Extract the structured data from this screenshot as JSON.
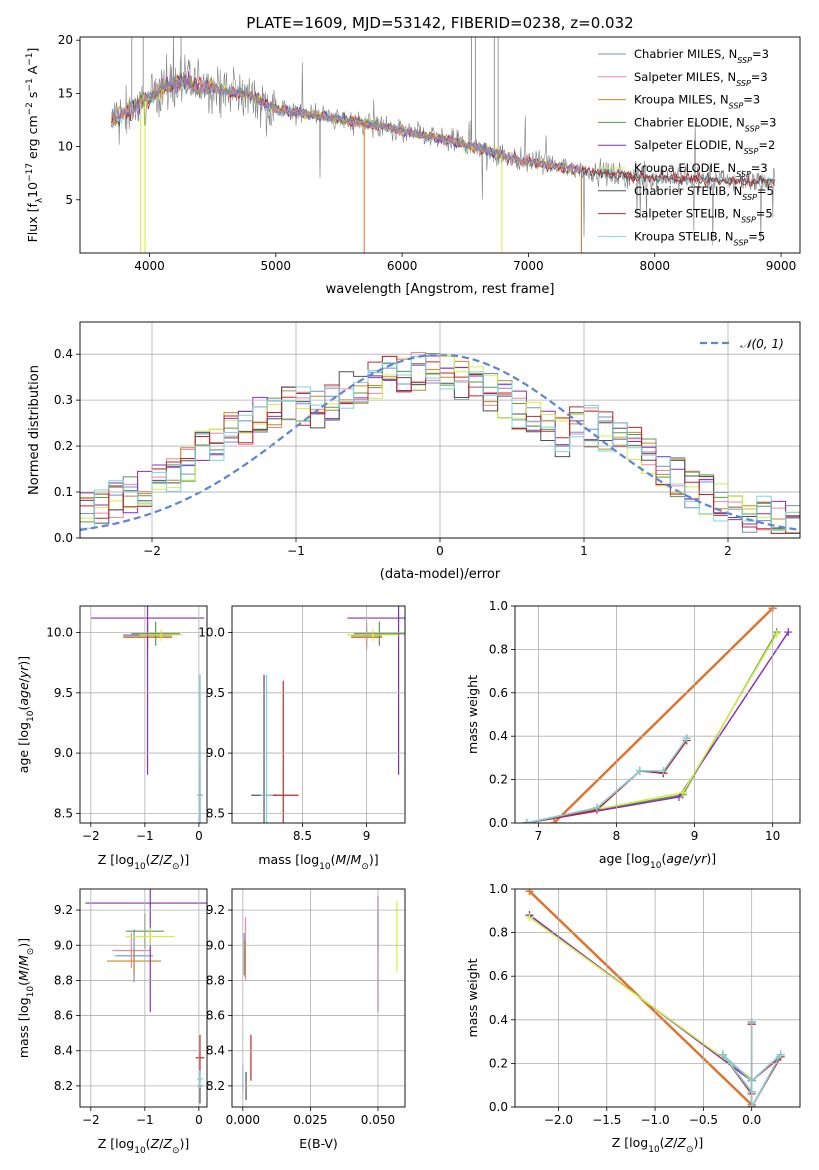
{
  "figure_title": "PLATE=1609, MJD=53142, FIBERID=0238, z=0.032",
  "colors": {
    "Chabrier MILES": "#6b8fd6",
    "Salpeter MILES": "#e98aa0",
    "Kroupa MILES": "#c58a2a",
    "Chabrier ELODIE": "#5a9a4a",
    "Salpeter ELODIE": "#8a2fb8",
    "Kroupa ELODIE": "#d4f040",
    "Chabrier STELIB": "#505050",
    "Salpeter STELIB": "#c02828",
    "Kroupa STELIB": "#7fd4e2",
    "data": "#808080",
    "orange": "#e0742c",
    "gauss": "#5b86d6"
  },
  "chart_data": [
    {
      "id": "spectrum",
      "type": "line",
      "title": "PLATE=1609, MJD=53142, FIBERID=0238, z=0.032",
      "xlabel": "wavelength [Angstrom, rest frame]",
      "ylabel": "Flux [f_λ 10^-17 erg cm^-2 s^-1 A^-1]",
      "xlim": [
        3450,
        9150
      ],
      "ylim": [
        0,
        20.3
      ],
      "xticks": [
        4000,
        5000,
        6000,
        7000,
        8000,
        9000
      ],
      "yticks": [
        5,
        10,
        15,
        20
      ],
      "legend_position": "right",
      "legend": [
        {
          "name": "Chabrier MILES",
          "nssp": "3"
        },
        {
          "name": "Salpeter MILES",
          "nssp": "3"
        },
        {
          "name": "Kroupa MILES",
          "nssp": "3"
        },
        {
          "name": "Chabrier ELODIE",
          "nssp": "3"
        },
        {
          "name": "Salpeter ELODIE",
          "nssp": "2"
        },
        {
          "name": "Kroupa ELODIE",
          "nssp": "3"
        },
        {
          "name": "Chabrier STELIB",
          "nssp": "5"
        },
        {
          "name": "Salpeter STELIB",
          "nssp": "5"
        },
        {
          "name": "Kroupa STELIB",
          "nssp": "5"
        }
      ],
      "continuum": [
        [
          3700,
          12.5
        ],
        [
          3850,
          13.5
        ],
        [
          4000,
          14.5
        ],
        [
          4100,
          15.6
        ],
        [
          4250,
          16.0
        ],
        [
          4500,
          15.5
        ],
        [
          4800,
          14.8
        ],
        [
          5000,
          13.5
        ],
        [
          5300,
          13.0
        ],
        [
          5700,
          12.2
        ],
        [
          6000,
          11.5
        ],
        [
          6400,
          10.5
        ],
        [
          6800,
          9.2
        ],
        [
          7000,
          8.6
        ],
        [
          7400,
          7.8
        ],
        [
          7800,
          7.2
        ],
        [
          8200,
          7.0
        ],
        [
          8600,
          6.8
        ],
        [
          8900,
          6.7
        ]
      ],
      "notes": "model spectra overlap the gray observed spectrum; MILES models end near 7400 A, ELODIE models end near 6800 A"
    },
    {
      "id": "residuals",
      "type": "line",
      "xlabel": "(data-model)/error",
      "ylabel": "Normed distribution",
      "xlim": [
        -2.5,
        2.5
      ],
      "ylim": [
        0,
        0.47
      ],
      "xticks": [
        -2,
        -1,
        0,
        1,
        2
      ],
      "yticks": [
        0.0,
        0.1,
        0.2,
        0.3,
        0.4
      ],
      "legend_position": "top-right",
      "legend_label": "𝒩(0, 1)",
      "hist_bin_width": 0.1
    },
    {
      "id": "age_vs_Z",
      "type": "scatter",
      "xlabel": "Z [log10(Z/Z⊙)]",
      "ylabel": "age [log10(age/yr)]",
      "xlim": [
        -2.2,
        0.15
      ],
      "ylim": [
        8.42,
        10.22
      ],
      "xticks": [
        -2,
        -1,
        0
      ],
      "yticks": [
        8.5,
        9.0,
        9.5,
        10.0
      ],
      "points": [
        {
          "model": "Chabrier MILES",
          "x": -0.95,
          "y": 9.98,
          "xerr": 0.45,
          "yerr": 0.1
        },
        {
          "model": "Salpeter MILES",
          "x": -0.95,
          "y": 9.97,
          "xerr": 0.45,
          "yerr": 0.12
        },
        {
          "model": "Kroupa MILES",
          "x": -0.95,
          "y": 9.96,
          "xerr": 0.45,
          "yerr": 0.08
        },
        {
          "model": "Chabrier ELODIE",
          "x": -0.8,
          "y": 9.99,
          "xerr": 0.45,
          "yerr": 0.1
        },
        {
          "model": "Salpeter ELODIE",
          "x": -0.95,
          "y": 10.12,
          "xerr": 1.05,
          "yerr": 1.3
        },
        {
          "model": "Kroupa ELODIE",
          "x": -0.7,
          "y": 9.98,
          "xerr": 0.4,
          "yerr": 0.05
        },
        {
          "model": "Chabrier STELIB",
          "x": 0.02,
          "y": 8.65,
          "xerr": 0.05,
          "yerr": 1.0
        },
        {
          "model": "Salpeter STELIB",
          "x": 0.02,
          "y": 8.65,
          "xerr": 0.04,
          "yerr": 0.25
        },
        {
          "model": "Kroupa STELIB",
          "x": 0.02,
          "y": 8.65,
          "xerr": 0.05,
          "yerr": 1.0
        }
      ]
    },
    {
      "id": "age_vs_mass",
      "type": "scatter",
      "xlabel": "mass [log10(M/M⊙)]",
      "ylabel": "",
      "xlim": [
        7.95,
        9.3
      ],
      "ylim": [
        8.42,
        10.22
      ],
      "xticks": [
        8.5,
        9.0
      ],
      "yticks": [
        8.5,
        9.0,
        9.5,
        10.0
      ],
      "points": [
        {
          "model": "Chabrier MILES",
          "x": 9.0,
          "y": 9.98,
          "xerr": 0.15,
          "yerr": 0.1
        },
        {
          "model": "Salpeter MILES",
          "x": 9.0,
          "y": 9.97,
          "xerr": 0.12,
          "yerr": 0.12
        },
        {
          "model": "Kroupa MILES",
          "x": 9.0,
          "y": 9.96,
          "xerr": 0.12,
          "yerr": 0.08
        },
        {
          "model": "Chabrier ELODIE",
          "x": 9.1,
          "y": 9.99,
          "xerr": 0.2,
          "yerr": 0.1
        },
        {
          "model": "Salpeter ELODIE",
          "x": 9.25,
          "y": 10.12,
          "xerr": 0.4,
          "yerr": 1.3
        },
        {
          "model": "Kroupa ELODIE",
          "x": 9.05,
          "y": 9.98,
          "xerr": 0.2,
          "yerr": 0.05
        },
        {
          "model": "Chabrier STELIB",
          "x": 8.2,
          "y": 8.65,
          "xerr": 0.1,
          "yerr": 1.0
        },
        {
          "model": "Salpeter STELIB",
          "x": 8.35,
          "y": 8.65,
          "xerr": 0.12,
          "yerr": 0.95
        },
        {
          "model": "Kroupa STELIB",
          "x": 8.22,
          "y": 8.65,
          "xerr": 0.05,
          "yerr": 1.0
        }
      ]
    },
    {
      "id": "massweight_vs_age",
      "type": "line",
      "xlabel": "age [log10(age/yr)]",
      "ylabel": "mass weight",
      "xlim": [
        6.7,
        10.35
      ],
      "ylim": [
        0,
        1.0
      ],
      "xticks": [
        7,
        8,
        9,
        10
      ],
      "yticks": [
        0.0,
        0.2,
        0.4,
        0.6,
        0.8,
        1.0
      ],
      "series": [
        {
          "model": "Chabrier MILES",
          "x": [
            7.2,
            10.0
          ],
          "y": [
            0.0,
            0.99
          ]
        },
        {
          "model": "Salpeter MILES",
          "x": [
            7.2,
            10.0
          ],
          "y": [
            0.0,
            0.99
          ]
        },
        {
          "model": "Kroupa MILES",
          "x": [
            7.2,
            10.0
          ],
          "y": [
            0.0,
            0.99
          ]
        },
        {
          "model": "Chabrier ELODIE",
          "x": [
            6.85,
            8.85,
            10.05
          ],
          "y": [
            0.0,
            0.13,
            0.88
          ]
        },
        {
          "model": "Salpeter ELODIE",
          "x": [
            6.85,
            8.8,
            10.2
          ],
          "y": [
            0.0,
            0.12,
            0.88
          ]
        },
        {
          "model": "Kroupa ELODIE",
          "x": [
            6.85,
            8.85,
            10.05
          ],
          "y": [
            0.0,
            0.14,
            0.87
          ]
        },
        {
          "model": "Chabrier STELIB",
          "x": [
            6.85,
            7.75,
            8.3,
            8.6,
            8.9
          ],
          "y": [
            0.0,
            0.07,
            0.24,
            0.23,
            0.39
          ]
        },
        {
          "model": "Salpeter STELIB",
          "x": [
            6.85,
            7.75,
            8.3,
            8.6,
            8.9
          ],
          "y": [
            0.0,
            0.06,
            0.24,
            0.23,
            0.38
          ]
        },
        {
          "model": "Kroupa STELIB",
          "x": [
            6.85,
            7.75,
            8.3,
            8.6,
            8.9
          ],
          "y": [
            0.0,
            0.07,
            0.24,
            0.24,
            0.39
          ]
        }
      ]
    },
    {
      "id": "mass_vs_Z",
      "type": "scatter",
      "xlabel": "Z [log10(Z/Z⊙)]",
      "ylabel": "mass [log10(M/M⊙)]",
      "xlim": [
        -2.2,
        0.15
      ],
      "ylim": [
        8.08,
        9.32
      ],
      "xticks": [
        -2,
        -1,
        0
      ],
      "yticks": [
        8.2,
        8.4,
        8.6,
        8.8,
        9.0,
        9.2
      ],
      "points": [
        {
          "model": "Chabrier MILES",
          "x": -1.2,
          "y": 8.94,
          "xerr": 0.35,
          "yerr": 0.15
        },
        {
          "model": "Salpeter MILES",
          "x": -1.25,
          "y": 8.97,
          "xerr": 0.35,
          "yerr": 0.1
        },
        {
          "model": "Kroupa MILES",
          "x": -1.2,
          "y": 8.91,
          "xerr": 0.5,
          "yerr": 0.07
        },
        {
          "model": "Chabrier ELODIE",
          "x": -1.0,
          "y": 9.08,
          "xerr": 0.35,
          "yerr": 0.1
        },
        {
          "model": "Salpeter ELODIE",
          "x": -0.9,
          "y": 9.24,
          "xerr": 1.2,
          "yerr": 0.62
        },
        {
          "model": "Kroupa ELODIE",
          "x": -0.9,
          "y": 9.05,
          "xerr": 0.45,
          "yerr": 0.05
        },
        {
          "model": "Chabrier STELIB",
          "x": 0.02,
          "y": 8.2,
          "xerr": 0.05,
          "yerr": 0.1
        },
        {
          "model": "Salpeter STELIB",
          "x": 0.02,
          "y": 8.36,
          "xerr": 0.08,
          "yerr": 0.13
        },
        {
          "model": "Kroupa STELIB",
          "x": 0.02,
          "y": 8.24,
          "xerr": 0.06,
          "yerr": 0.05
        }
      ]
    },
    {
      "id": "mass_vs_ebv",
      "type": "scatter",
      "xlabel": "E(B-V)",
      "ylabel": "",
      "xlim": [
        -0.004,
        0.06
      ],
      "ylim": [
        8.08,
        9.32
      ],
      "xticks": [
        0.0,
        0.025,
        0.05
      ],
      "xticklabels": [
        "0.000",
        "0.025",
        "0.050"
      ],
      "yticks": [
        8.2,
        8.4,
        8.6,
        8.8,
        9.0,
        9.2
      ],
      "points": [
        {
          "model": "Chabrier MILES",
          "x": 0.0005,
          "y": 8.95,
          "yerr": 0.12
        },
        {
          "model": "Salpeter MILES",
          "x": 0.001,
          "y": 8.98,
          "yerr": 0.18
        },
        {
          "model": "Kroupa MILES",
          "x": 0.0008,
          "y": 8.92,
          "yerr": 0.1
        },
        {
          "model": "Chabrier ELODIE",
          "x": 0.05,
          "y": 9.08,
          "yerr": 0.1
        },
        {
          "model": "Salpeter ELODIE",
          "x": 0.05,
          "y": 8.95,
          "yerr": 0.33
        },
        {
          "model": "Kroupa ELODIE",
          "x": 0.057,
          "y": 9.05,
          "yerr": 0.2
        },
        {
          "model": "Chabrier STELIB",
          "x": 0.0012,
          "y": 8.2,
          "yerr": 0.08
        },
        {
          "model": "Salpeter STELIB",
          "x": 0.003,
          "y": 8.36,
          "yerr": 0.13
        },
        {
          "model": "Kroupa STELIB",
          "x": 0.0,
          "y": 8.24,
          "yerr": 0.08
        }
      ]
    },
    {
      "id": "massweight_vs_Z",
      "type": "line",
      "xlabel": "Z [log10(Z/Z⊙)]",
      "ylabel": "mass weight",
      "xlim": [
        -2.45,
        0.5
      ],
      "ylim": [
        0,
        1.0
      ],
      "xticks": [
        -2.0,
        -1.5,
        -1.0,
        -0.5,
        0.0
      ],
      "xticklabels": [
        "−2.0",
        "−1.5",
        "−1.0",
        "−0.5",
        "0.0"
      ],
      "yticks": [
        0.0,
        0.2,
        0.4,
        0.6,
        0.8,
        1.0
      ],
      "series": [
        {
          "model": "Chabrier MILES",
          "x": [
            -2.3,
            0.0
          ],
          "y": [
            0.99,
            0.01
          ]
        },
        {
          "model": "Salpeter MILES",
          "x": [
            -2.3,
            0.0
          ],
          "y": [
            0.99,
            0.01
          ]
        },
        {
          "model": "Kroupa MILES",
          "x": [
            -2.3,
            0.0
          ],
          "y": [
            0.99,
            0.01
          ]
        },
        {
          "model": "Chabrier ELODIE",
          "x": [
            -2.3,
            0.0,
            0.0
          ],
          "y": [
            0.88,
            0.12,
            0.0
          ]
        },
        {
          "model": "Salpeter ELODIE",
          "x": [
            -2.3,
            0.0,
            0.0
          ],
          "y": [
            0.88,
            0.12,
            0.0
          ]
        },
        {
          "model": "Kroupa ELODIE",
          "x": [
            -2.3,
            0.0,
            0.0
          ],
          "y": [
            0.87,
            0.13,
            0.0
          ]
        },
        {
          "model": "Chabrier STELIB",
          "x": [
            0.0,
            0.0,
            -0.3,
            0.0,
            0.3,
            0.0,
            0.0
          ],
          "y": [
            0.39,
            0.07,
            0.24,
            0.12,
            0.24,
            0.0,
            0.39
          ]
        },
        {
          "model": "Salpeter STELIB",
          "x": [
            0.0,
            0.0,
            -0.3,
            0.0,
            0.3,
            0.0,
            0.0
          ],
          "y": [
            0.38,
            0.06,
            0.24,
            0.12,
            0.23,
            0.0,
            0.38
          ]
        },
        {
          "model": "Kroupa STELIB",
          "x": [
            0.0,
            0.0,
            -0.3,
            0.0,
            0.3,
            0.0,
            0.0
          ],
          "y": [
            0.39,
            0.07,
            0.24,
            0.12,
            0.24,
            0.0,
            0.39
          ]
        }
      ]
    }
  ]
}
